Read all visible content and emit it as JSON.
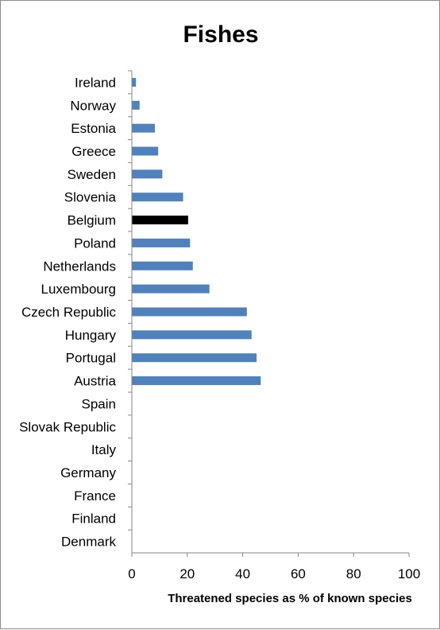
{
  "chart_data": {
    "type": "bar",
    "orientation": "horizontal",
    "title": "Fishes",
    "xlabel": "Threatened species as % of known species",
    "ylabel": "",
    "xlim": [
      0,
      100
    ],
    "xticks": [
      "0",
      "20",
      "40",
      "60",
      "80",
      "100"
    ],
    "grid": false,
    "legend": "none",
    "colors": {
      "default": "#4f81bd",
      "highlight": "#000000",
      "axis": "#868686"
    },
    "highlight_category": "Belgium",
    "categories": [
      "Ireland",
      "Norway",
      "Estonia",
      "Greece",
      "Sweden",
      "Slovenia",
      "Belgium",
      "Poland",
      "Netherlands",
      "Luxembourg",
      "Czech Republic",
      "Hungary",
      "Portugal",
      "Austria",
      "Spain",
      "Slovak Republic",
      "Italy",
      "Germany",
      "France",
      "Finland",
      "Denmark"
    ],
    "values": [
      1.5,
      2.8,
      8.3,
      9.5,
      11,
      18.5,
      20.3,
      21,
      22,
      28,
      41.5,
      43.2,
      45,
      46.5,
      0,
      0,
      0,
      0,
      0,
      0,
      0
    ]
  }
}
